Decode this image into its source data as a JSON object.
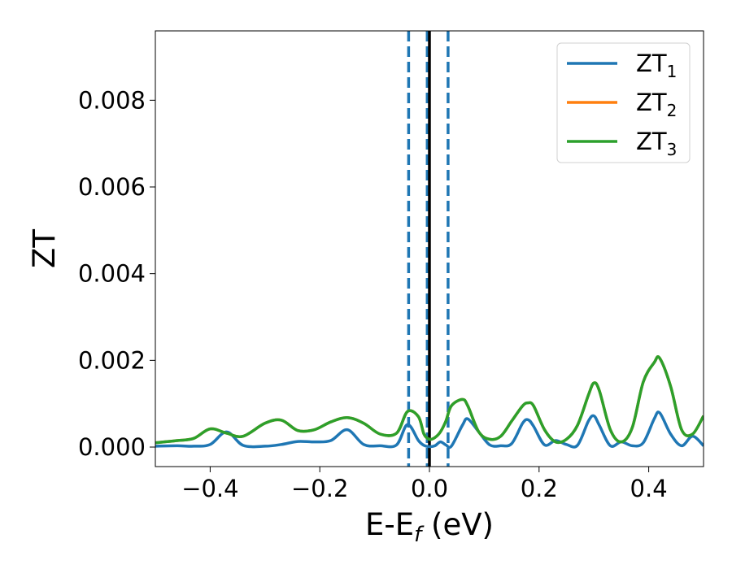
{
  "chart_data": {
    "type": "line",
    "title": "",
    "xlabel": {
      "main": "E-E",
      "sub": "f",
      "suffix": " (eV)"
    },
    "ylabel": "ZT",
    "xlim": [
      -0.5,
      0.5
    ],
    "ylim": [
      -0.00045,
      0.0096
    ],
    "xticks": [
      -0.4,
      -0.2,
      0.0,
      0.2,
      0.4
    ],
    "xtick_labels": [
      "−0.4",
      "−0.2",
      "0.0",
      "0.2",
      "0.4"
    ],
    "yticks": [
      0.0,
      0.002,
      0.004,
      0.006,
      0.008
    ],
    "ytick_labels": [
      "0.000",
      "0.002",
      "0.004",
      "0.006",
      "0.008"
    ],
    "grid": false,
    "legend_position": "top-right",
    "vlines": [
      {
        "x": -0.038,
        "style": "dashed",
        "color": "#1f77b4"
      },
      {
        "x": -0.004,
        "style": "dashed",
        "color": "#1f77b4"
      },
      {
        "x": 0.0,
        "style": "solid",
        "color": "#000000"
      },
      {
        "x": 0.034,
        "style": "dashed",
        "color": "#1f77b4"
      }
    ],
    "series": [
      {
        "name": {
          "main": "ZT",
          "sub": "1"
        },
        "color": "#1f77b4",
        "x": [
          -0.5,
          -0.46,
          -0.43,
          -0.4,
          -0.37,
          -0.34,
          -0.3,
          -0.27,
          -0.24,
          -0.21,
          -0.18,
          -0.15,
          -0.12,
          -0.09,
          -0.06,
          -0.04,
          -0.02,
          -0.01,
          0.0,
          0.01,
          0.02,
          0.03,
          0.04,
          0.06,
          0.07,
          0.09,
          0.11,
          0.13,
          0.15,
          0.17,
          0.18,
          0.19,
          0.21,
          0.23,
          0.25,
          0.27,
          0.29,
          0.3,
          0.31,
          0.33,
          0.35,
          0.37,
          0.39,
          0.41,
          0.42,
          0.44,
          0.46,
          0.48,
          0.5
        ],
        "y": [
          2e-05,
          3e-05,
          2e-05,
          6e-05,
          0.00035,
          4e-05,
          2e-05,
          6e-05,
          0.00013,
          0.00012,
          0.00015,
          0.0004,
          6e-05,
          3e-05,
          5e-05,
          0.00052,
          0.00015,
          4e-05,
          1e-05,
          3e-05,
          0.00012,
          5e-05,
          2e-05,
          0.0005,
          0.00065,
          0.00035,
          5e-05,
          3e-05,
          8e-05,
          0.00055,
          0.00063,
          0.00048,
          5e-05,
          0.00015,
          6e-05,
          4e-05,
          0.0006,
          0.00072,
          0.0005,
          3e-05,
          0.00012,
          3e-05,
          0.0001,
          0.00065,
          0.00079,
          0.0003,
          3e-05,
          0.00025,
          3e-05
        ]
      },
      {
        "name": {
          "main": "ZT",
          "sub": "2"
        },
        "color": "#ff7f0e",
        "x": [
          -0.5,
          -0.46,
          -0.43,
          -0.4,
          -0.37,
          -0.34,
          -0.3,
          -0.27,
          -0.24,
          -0.21,
          -0.18,
          -0.15,
          -0.12,
          -0.09,
          -0.06,
          -0.04,
          -0.02,
          -0.01,
          0.0,
          0.01,
          0.02,
          0.03,
          0.04,
          0.06,
          0.07,
          0.09,
          0.11,
          0.13,
          0.15,
          0.17,
          0.18,
          0.19,
          0.21,
          0.23,
          0.25,
          0.27,
          0.29,
          0.3,
          0.31,
          0.33,
          0.35,
          0.37,
          0.39,
          0.41,
          0.42,
          0.44,
          0.46,
          0.48,
          0.5
        ],
        "y": [
          0.0001,
          0.00015,
          0.0002,
          0.00042,
          0.00032,
          0.00025,
          0.00055,
          0.00062,
          0.00038,
          0.0004,
          0.00058,
          0.00068,
          0.00055,
          0.0003,
          0.00032,
          0.00082,
          0.0007,
          0.0003,
          0.00018,
          0.00022,
          0.00035,
          0.0006,
          0.00095,
          0.0011,
          0.00095,
          0.00035,
          0.00018,
          0.00025,
          0.0006,
          0.00095,
          0.00102,
          0.00095,
          0.0004,
          0.00012,
          0.00018,
          0.0005,
          0.0012,
          0.00148,
          0.0013,
          0.0004,
          0.00012,
          0.00045,
          0.0015,
          0.00195,
          0.00205,
          0.0014,
          0.0004,
          0.0003,
          0.00072
        ]
      },
      {
        "name": {
          "main": "ZT",
          "sub": "3"
        },
        "color": "#2ca02c",
        "x": [
          -0.5,
          -0.46,
          -0.43,
          -0.4,
          -0.37,
          -0.34,
          -0.3,
          -0.27,
          -0.24,
          -0.21,
          -0.18,
          -0.15,
          -0.12,
          -0.09,
          -0.06,
          -0.04,
          -0.02,
          -0.01,
          0.0,
          0.01,
          0.02,
          0.03,
          0.04,
          0.06,
          0.07,
          0.09,
          0.11,
          0.13,
          0.15,
          0.17,
          0.18,
          0.19,
          0.21,
          0.23,
          0.25,
          0.27,
          0.29,
          0.3,
          0.31,
          0.33,
          0.35,
          0.37,
          0.39,
          0.41,
          0.42,
          0.44,
          0.46,
          0.48,
          0.5
        ],
        "y": [
          0.0001,
          0.00015,
          0.0002,
          0.00042,
          0.00032,
          0.00025,
          0.00055,
          0.00062,
          0.00038,
          0.0004,
          0.00058,
          0.00068,
          0.00055,
          0.0003,
          0.00032,
          0.00082,
          0.0007,
          0.0003,
          0.00018,
          0.00022,
          0.00035,
          0.0006,
          0.00095,
          0.0011,
          0.00095,
          0.00035,
          0.00018,
          0.00025,
          0.0006,
          0.00095,
          0.00102,
          0.00095,
          0.0004,
          0.00012,
          0.00018,
          0.0005,
          0.0012,
          0.00148,
          0.0013,
          0.0004,
          0.00012,
          0.00045,
          0.0015,
          0.00195,
          0.00205,
          0.0014,
          0.0004,
          0.0003,
          0.00072
        ]
      }
    ]
  }
}
